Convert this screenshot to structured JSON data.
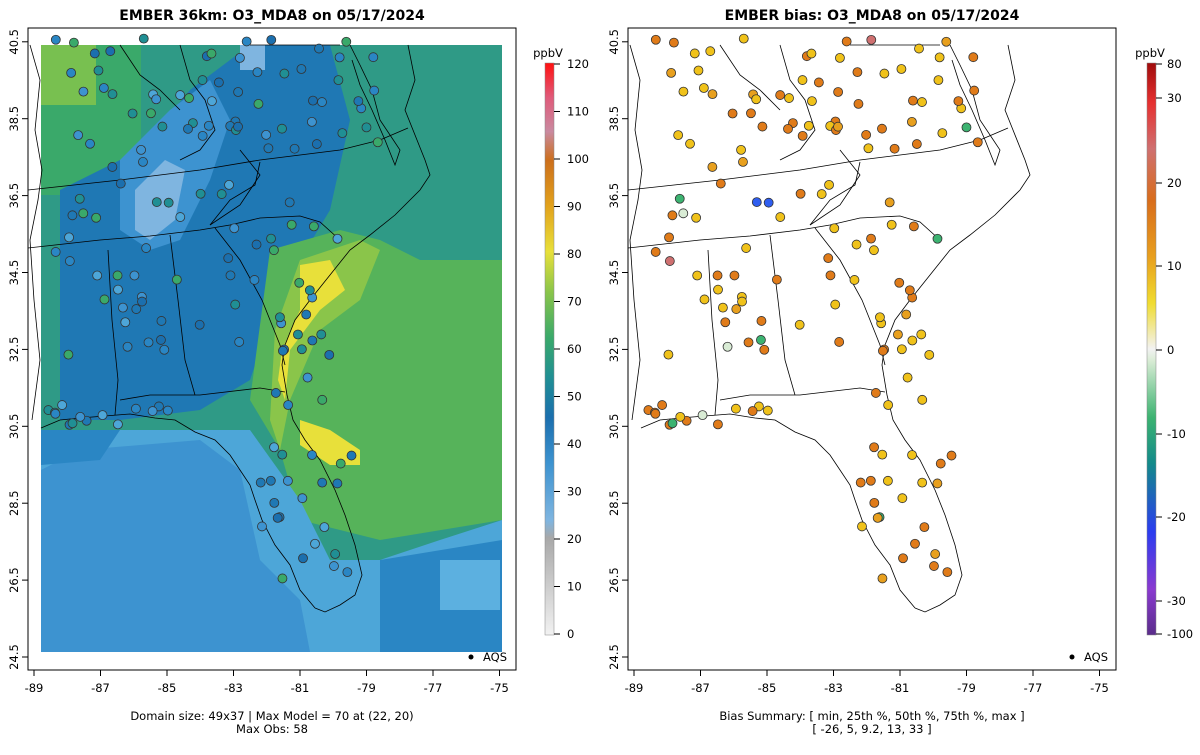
{
  "left_panel": {
    "title": "EMBER 36km: O3_MDA8 on 05/17/2024",
    "units": "ppbV",
    "colorbar_ticks": [
      0,
      10,
      20,
      30,
      40,
      50,
      60,
      70,
      80,
      90,
      100,
      110,
      120
    ],
    "x_ticks": [
      "-89",
      "-87",
      "-85",
      "-83",
      "-81",
      "-79",
      "-77",
      "-75"
    ],
    "y_ticks": [
      "24.5",
      "26.5",
      "28.5",
      "30.5",
      "32.5",
      "34.5",
      "36.5",
      "38.5",
      "40.5"
    ],
    "legend_label": "AQS",
    "footer_line1": "Domain size: 49x37 | Max Model = 70 at (22, 20)",
    "footer_line2": "Max Obs: 58"
  },
  "right_panel": {
    "title": "EMBER bias: O3_MDA8 on 05/17/2024",
    "units": "ppbV",
    "colorbar_ticks": [
      "80",
      "30",
      "20",
      "10",
      "0",
      "-10",
      "-20",
      "-30",
      "-100"
    ],
    "x_ticks": [
      "-89",
      "-87",
      "-85",
      "-83",
      "-81",
      "-79",
      "-77",
      "-75"
    ],
    "y_ticks": [
      "24.5",
      "26.5",
      "28.5",
      "30.5",
      "32.5",
      "34.5",
      "36.5",
      "38.5",
      "40.5"
    ],
    "legend_label": "AQS",
    "footer_line1": "Bias Summary: [ min, 25th %, 50th %, 75th %, max ]",
    "footer_line2": "[ -26,  5,  9.2,  13,  33 ]"
  },
  "colors": {
    "ocean_band": "#4da6d8",
    "low_blue": "#1f78b4",
    "mid_green": "#3aa96a",
    "high_yellow": "#f2e13a",
    "bias_orange": "#e07b19",
    "bias_yellow": "#f0c21a",
    "bias_green": "#3cb371",
    "bias_blue": "#2f5ef0"
  }
}
